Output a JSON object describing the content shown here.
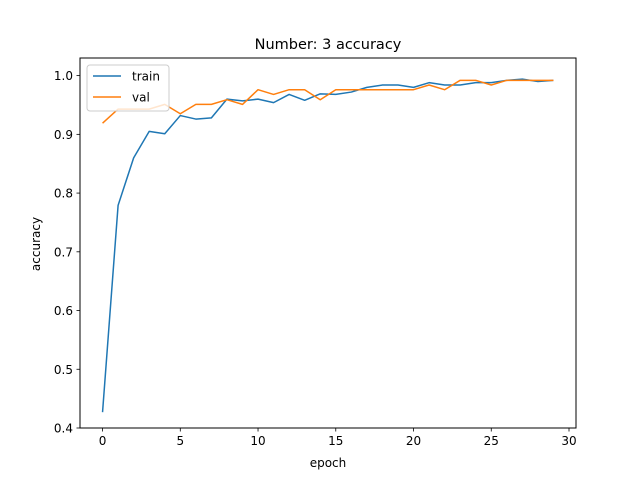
{
  "chart_data": {
    "type": "line",
    "title": "Number: 3 accuracy",
    "xlabel": "epoch",
    "ylabel": "accuracy",
    "xlim": [
      -1.45,
      30.45
    ],
    "ylim": [
      0.4,
      1.03
    ],
    "xticks": [
      0,
      5,
      10,
      15,
      20,
      25,
      30
    ],
    "yticks": [
      0.4,
      0.5,
      0.6,
      0.7,
      0.8,
      0.9,
      1.0
    ],
    "xtick_labels": [
      "0",
      "5",
      "10",
      "15",
      "20",
      "25",
      "30"
    ],
    "ytick_labels": [
      "0.4",
      "0.5",
      "0.6",
      "0.7",
      "0.8",
      "0.9",
      "1.0"
    ],
    "grid": false,
    "legend_position": "upper-left",
    "x": [
      0,
      1,
      2,
      3,
      4,
      5,
      6,
      7,
      8,
      9,
      10,
      11,
      12,
      13,
      14,
      15,
      16,
      17,
      18,
      19,
      20,
      21,
      22,
      23,
      24,
      25,
      26,
      27,
      28,
      29
    ],
    "series": [
      {
        "name": "train",
        "color": "#1f77b4",
        "values": [
          0.427,
          0.779,
          0.86,
          0.905,
          0.901,
          0.932,
          0.926,
          0.928,
          0.96,
          0.957,
          0.96,
          0.954,
          0.968,
          0.958,
          0.969,
          0.968,
          0.972,
          0.98,
          0.984,
          0.984,
          0.98,
          0.988,
          0.984,
          0.984,
          0.988,
          0.988,
          0.992,
          0.994,
          0.99,
          0.992
        ]
      },
      {
        "name": "val",
        "color": "#ff7f0e",
        "values": [
          0.919,
          0.943,
          0.943,
          0.943,
          0.951,
          0.935,
          0.951,
          0.951,
          0.959,
          0.951,
          0.976,
          0.968,
          0.976,
          0.976,
          0.959,
          0.976,
          0.976,
          0.976,
          0.976,
          0.976,
          0.976,
          0.984,
          0.976,
          0.992,
          0.992,
          0.984,
          0.992,
          0.992,
          0.992,
          0.992
        ]
      }
    ]
  }
}
